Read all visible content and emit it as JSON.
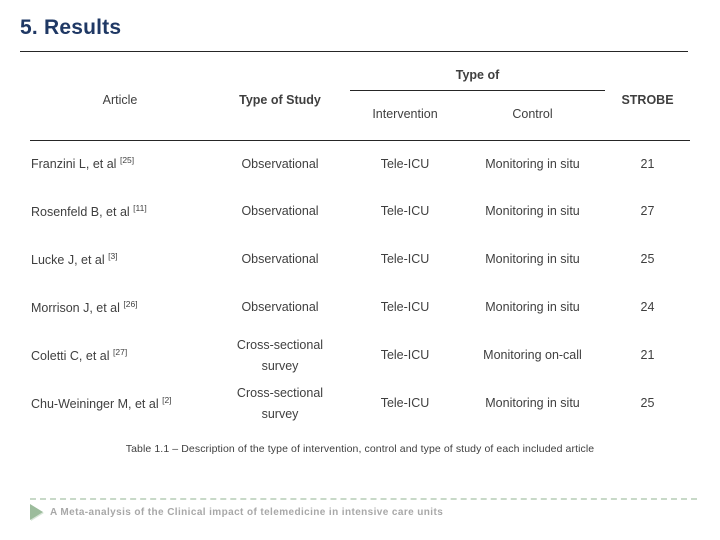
{
  "slide": {
    "title": "5. Results",
    "caption": "Table 1.1 – Description of the type of intervention, control and type of study of each included article",
    "footer_text": "A Meta-analysis of the Clinical impact of telemedicine in intensive care units"
  },
  "colors": {
    "title_navy": "#1f3864",
    "table_text": "#3f3f3f",
    "rule_dark": "#262626",
    "footer_gray": "#a8a8a8",
    "footer_arrow_green": "#9cbc9c",
    "footer_dash_green": "#c8d9c8"
  },
  "icons": {
    "footer_arrow": "right-pointing-triangle"
  },
  "table": {
    "headers": {
      "article": "Article",
      "type_of_study": "Type of Study",
      "type_of_group": "Type of",
      "intervention": "Intervention",
      "control": "Control",
      "strobe": "STROBE"
    },
    "rows": [
      {
        "article": "Franzini L, et al",
        "ref": "[25]",
        "study": "Observational",
        "intervention": "Tele-ICU",
        "control": "Monitoring in situ",
        "strobe": "21"
      },
      {
        "article": "Rosenfeld B, et al",
        "ref": "[11]",
        "study": "Observational",
        "intervention": "Tele-ICU",
        "control": "Monitoring in situ",
        "strobe": "27"
      },
      {
        "article": "Lucke J, et al",
        "ref": "[3]",
        "study": "Observational",
        "intervention": "Tele-ICU",
        "control": "Monitoring in situ",
        "strobe": "25"
      },
      {
        "article": "Morrison J, et al",
        "ref": "[26]",
        "study": "Observational",
        "intervention": "Tele-ICU",
        "control": "Monitoring in situ",
        "strobe": "24"
      },
      {
        "article": "Coletti C, et al",
        "ref": "[27]",
        "study": "Cross-sectional survey",
        "intervention": "Tele-ICU",
        "control": "Monitoring on-call",
        "strobe": "21"
      },
      {
        "article": "Chu-Weininger M, et al",
        "ref": "[2]",
        "study": "Cross-sectional survey",
        "intervention": "Tele-ICU",
        "control": "Monitoring in situ",
        "strobe": "25"
      }
    ]
  }
}
